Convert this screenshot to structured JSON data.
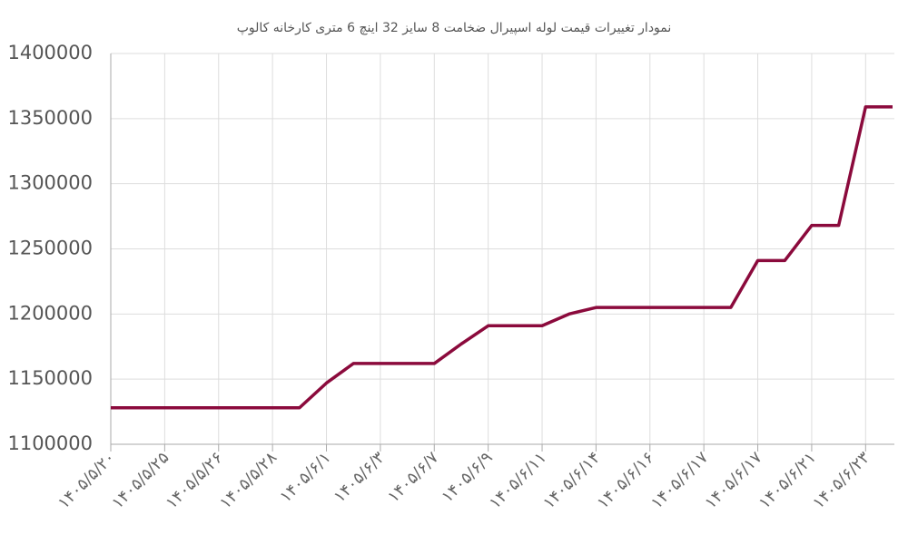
{
  "chart_data": {
    "type": "line",
    "title": "نمودار تغییرات قیمت لوله اسپیرال ضخامت 8 سایز 32 اینچ 6 متری کارخانه کالوپ",
    "categories": [
      "۱۴۰۵/۵/۲۰",
      null,
      "۱۴۰۵/۵/۲۵",
      null,
      "۱۴۰۵/۵/۲۶",
      null,
      "۱۴۰۵/۵/۲۸",
      null,
      "۱۴۰۵/۶/۱",
      null,
      "۱۴۰۵/۶/۳",
      null,
      "۱۴۰۵/۶/۷",
      null,
      "۱۴۰۵/۶/۹",
      null,
      "۱۴۰۵/۶/۱۱",
      null,
      "۱۴۰۵/۶/۱۴",
      null,
      "۱۴۰۵/۶/۱۶",
      null,
      "۱۴۰۵/۶/۱۷",
      null,
      "۱۴۰۵/۶/۱۷",
      null,
      "۱۴۰۵/۶/۲۱",
      null,
      "۱۴۰۵/۶/۲۳",
      null
    ],
    "values": [
      1128000,
      1128000,
      1128000,
      1128000,
      1128000,
      1128000,
      1128000,
      1128000,
      1147000,
      1162000,
      1162000,
      1162000,
      1162000,
      1177000,
      1191000,
      1191000,
      1191000,
      1200000,
      1205000,
      1205000,
      1205000,
      1205000,
      1205000,
      1205000,
      1241000,
      1241000,
      1268000,
      1268000,
      1359000,
      1359000
    ],
    "color": "#8b0a3c",
    "ylim": [
      1100000,
      1400000
    ],
    "yticks": [
      1100000,
      1150000,
      1200000,
      1250000,
      1300000,
      1350000,
      1400000
    ],
    "grid": true
  }
}
